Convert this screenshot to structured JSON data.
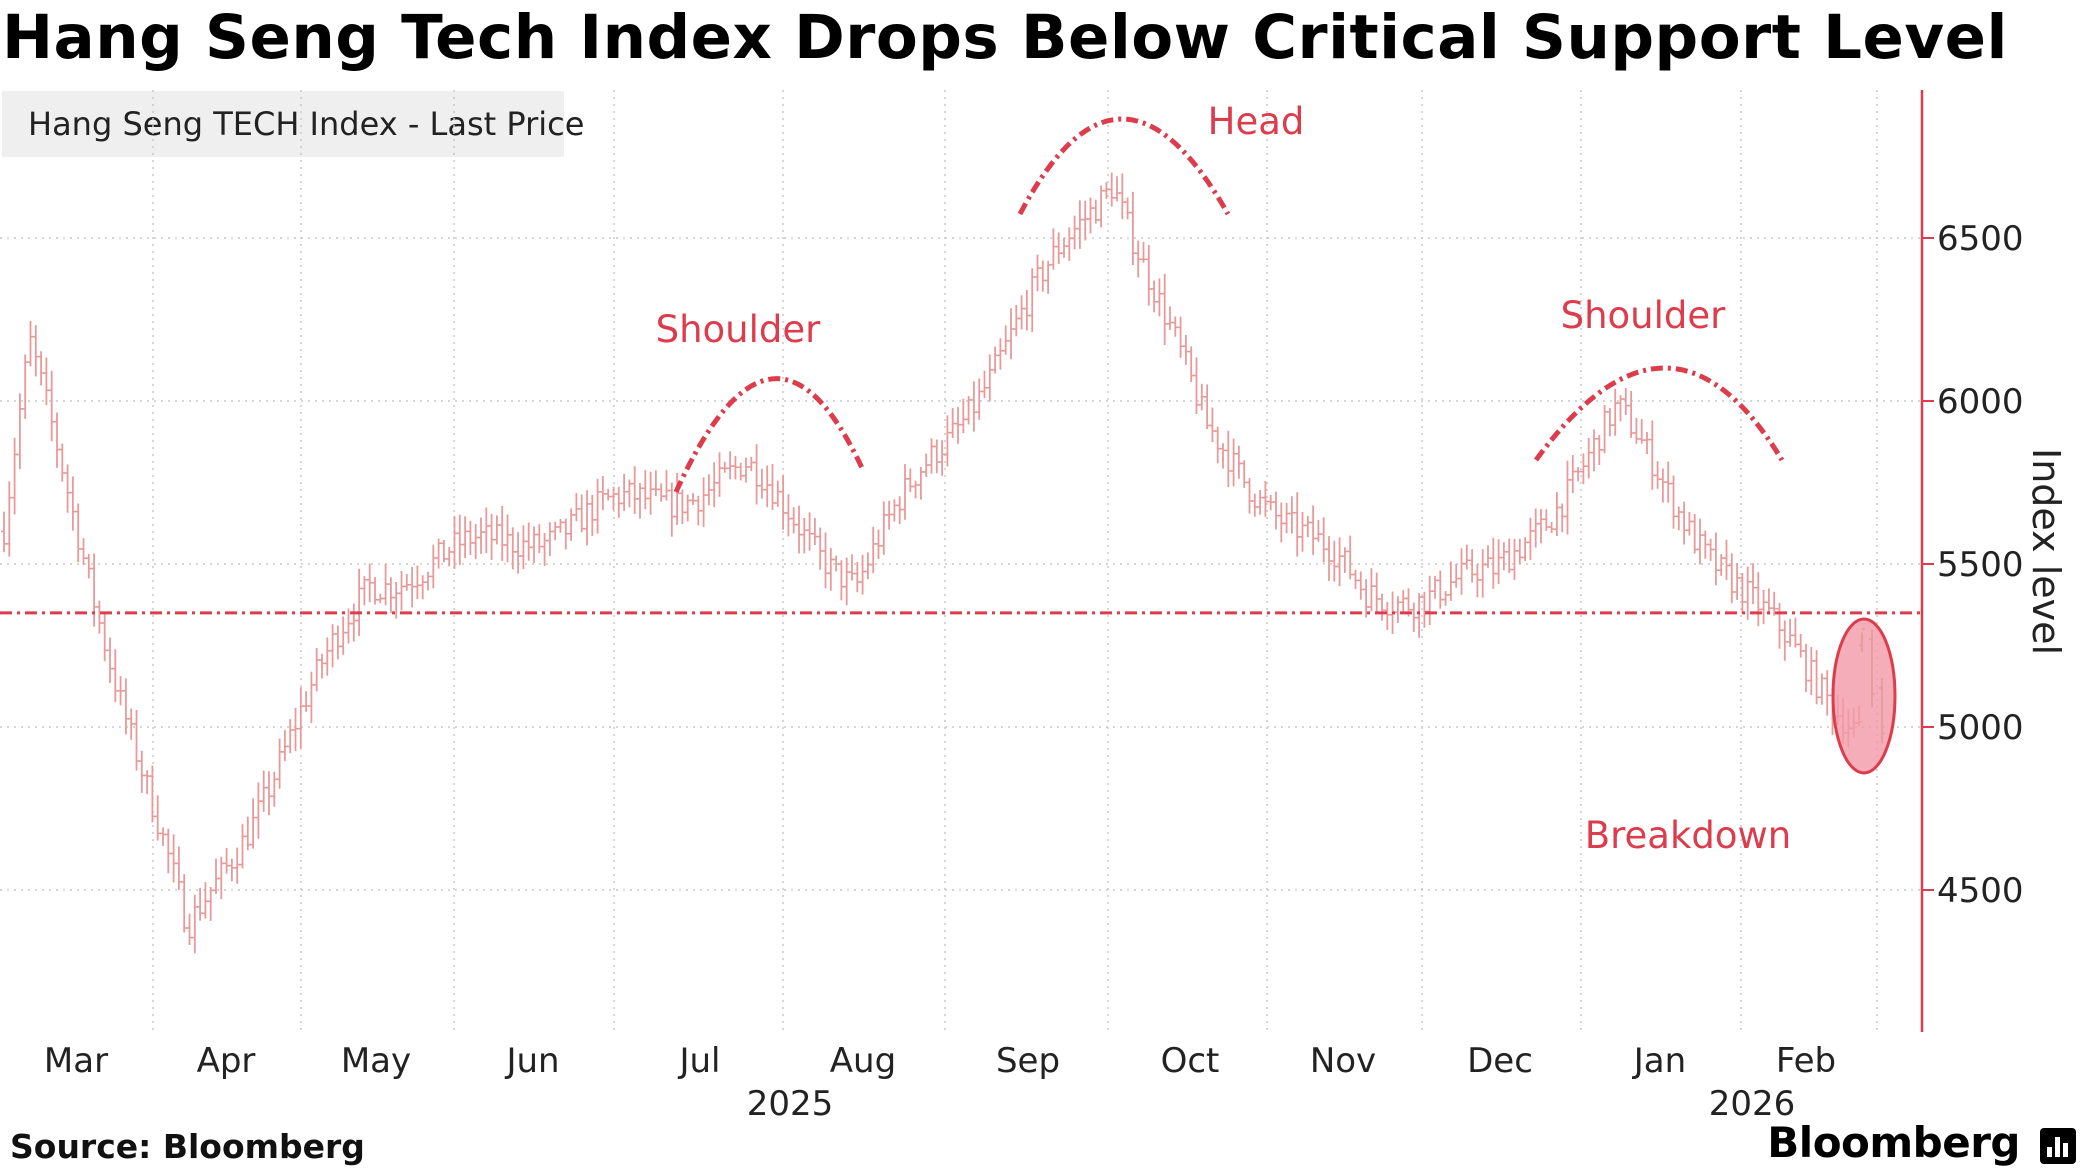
{
  "title": "Hang Seng Tech Index Drops Below Critical Support Level",
  "legend": {
    "label": "Hang Seng TECH Index - Last Price",
    "color": "#e86b6b"
  },
  "source": "Source: Bloomberg",
  "brand": "Bloomberg",
  "chart_data": {
    "type": "ohlc",
    "title": "Hang Seng Tech Index Drops Below Critical Support Level",
    "series_name": "Hang Seng TECH Index - Last Price",
    "ylabel": "Index level",
    "y_ticks": [
      4500,
      5000,
      5500,
      6000,
      6500
    ],
    "ylim": [
      4100,
      6950
    ],
    "x_months": [
      "Mar",
      "Apr",
      "May",
      "Jun",
      "Jul",
      "Aug",
      "Sep",
      "Oct",
      "Nov",
      "Dec",
      "Jan",
      "Feb"
    ],
    "x_years": [
      {
        "label": "2025",
        "under_month": "Aug"
      },
      {
        "label": "2026",
        "under_month": "Feb"
      }
    ],
    "support_level": 5350,
    "annotations": [
      "Shoulder",
      "Head",
      "Shoulder",
      "Breakdown"
    ],
    "key_points_approx": [
      {
        "date": "2025-03-07",
        "value": 6150
      },
      {
        "date": "2025-04-08",
        "value": 4350
      },
      {
        "date": "2025-05-15",
        "value": 5450
      },
      {
        "date": "2025-07-25",
        "value": 5780
      },
      {
        "date": "2025-08-15",
        "value": 5450
      },
      {
        "date": "2025-10-02",
        "value": 6700
      },
      {
        "date": "2025-10-20",
        "value": 5900
      },
      {
        "date": "2025-11-20",
        "value": 5400
      },
      {
        "date": "2025-12-15",
        "value": 5450
      },
      {
        "date": "2026-01-08",
        "value": 5950
      },
      {
        "date": "2026-02-04",
        "value": 5350
      },
      {
        "date": "2026-02-26",
        "value": 5000
      }
    ],
    "colors": {
      "bars": "#e89a9a",
      "accent": "#dc3c4c",
      "circle_fill": "#f29aa8",
      "grid": "#c8c8c8"
    }
  }
}
